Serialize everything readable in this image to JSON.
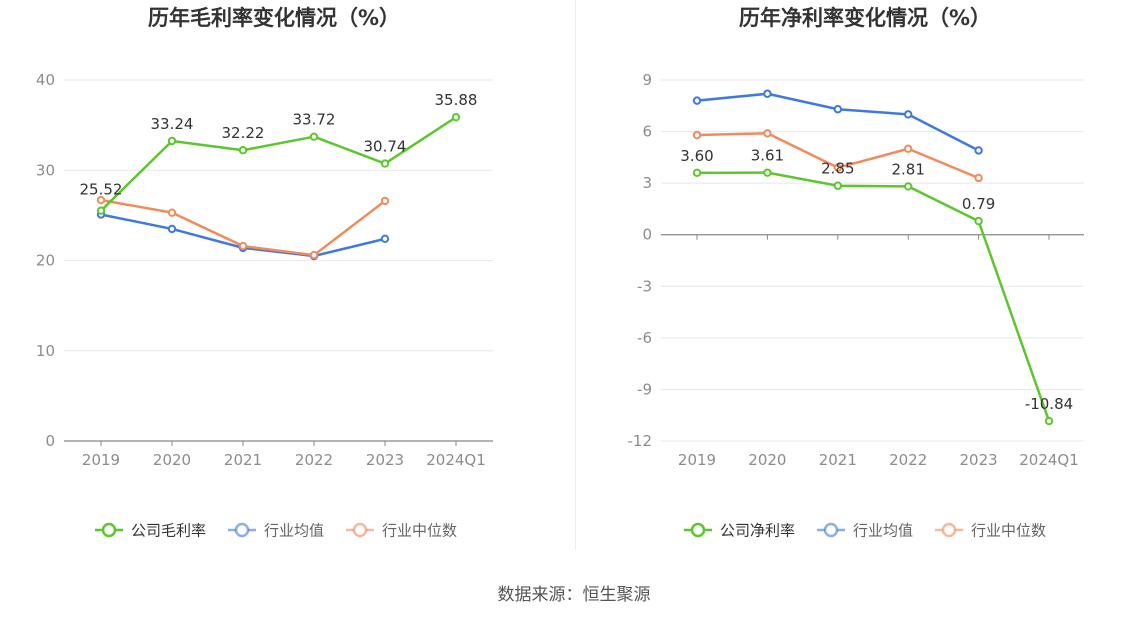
{
  "footer": {
    "source": "数据来源：恒生聚源"
  },
  "colors": {
    "company": "#5cc72c",
    "industry_avg": "#3f78e0",
    "industry_median": "#f28b5b",
    "grid": "#e8e8ee",
    "axis": "#888888",
    "tick_text": "#8c8c8c"
  },
  "chart_data": [
    {
      "type": "line",
      "title": "历年毛利率变化情况（%）",
      "categories": [
        "2019",
        "2020",
        "2021",
        "2022",
        "2023",
        "2024Q1"
      ],
      "ylim": [
        0,
        40
      ],
      "yticks": [
        0,
        10,
        20,
        30,
        40
      ],
      "grid": true,
      "legend_position": "bottom",
      "series": [
        {
          "name": "公司毛利率",
          "color_key": "company",
          "values": [
            25.52,
            33.24,
            32.22,
            33.72,
            30.74,
            35.88
          ],
          "labels": [
            "25.52",
            "33.24",
            "32.22",
            "33.72",
            "30.74",
            "35.88"
          ]
        },
        {
          "name": "行业均值",
          "color_key": "industry_avg",
          "values": [
            25.1,
            23.5,
            21.4,
            20.5,
            22.4,
            null
          ]
        },
        {
          "name": "行业中位数",
          "color_key": "industry_median",
          "values": [
            26.7,
            25.3,
            21.6,
            20.6,
            26.6,
            null
          ]
        }
      ]
    },
    {
      "type": "line",
      "title": "历年净利率变化情况（%）",
      "categories": [
        "2019",
        "2020",
        "2021",
        "2022",
        "2023",
        "2024Q1"
      ],
      "ylim": [
        -12,
        9
      ],
      "yticks": [
        -12,
        -9,
        -6,
        -3,
        0,
        3,
        6,
        9
      ],
      "grid": true,
      "legend_position": "bottom",
      "series": [
        {
          "name": "公司净利率",
          "color_key": "company",
          "values": [
            3.6,
            3.61,
            2.85,
            2.81,
            0.79,
            -10.84
          ],
          "labels": [
            "3.60",
            "3.61",
            "2.85",
            "2.81",
            "0.79",
            "-10.84"
          ]
        },
        {
          "name": "行业均值",
          "color_key": "industry_avg",
          "values": [
            7.8,
            8.2,
            7.3,
            7.0,
            4.9,
            null
          ]
        },
        {
          "name": "行业中位数",
          "color_key": "industry_median",
          "values": [
            5.8,
            5.9,
            3.9,
            5.0,
            3.3,
            null
          ]
        }
      ]
    }
  ]
}
